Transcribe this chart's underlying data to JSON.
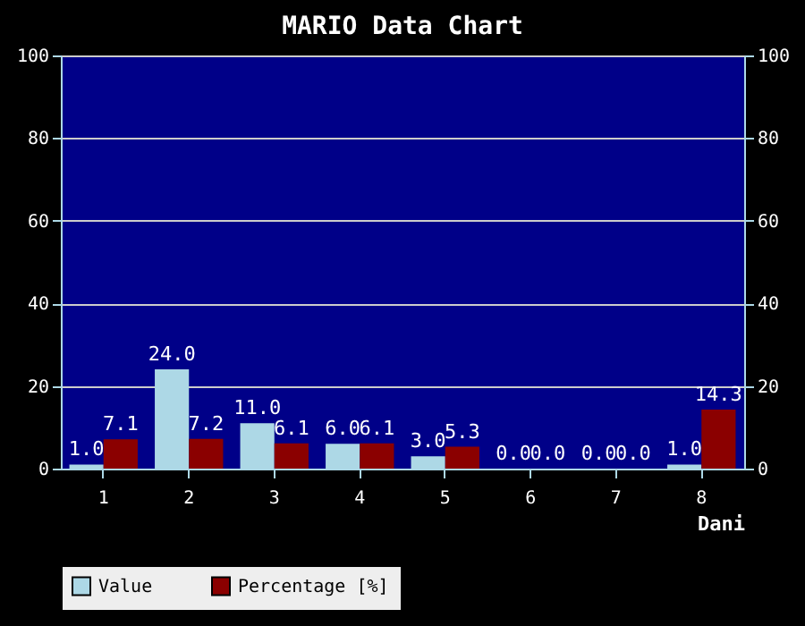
{
  "chart_data": {
    "type": "bar",
    "title": "MARIO Data Chart",
    "xlabel": "Dani",
    "categories": [
      "1",
      "2",
      "3",
      "4",
      "5",
      "6",
      "7",
      "8"
    ],
    "series": [
      {
        "name": "Value",
        "color": "#add8e6",
        "values": [
          1.0,
          24.0,
          11.0,
          6.0,
          3.0,
          0.0,
          0.0,
          1.0
        ],
        "value_labels": [
          "1.0",
          "24.0",
          "11.0",
          "6.0",
          "3.0",
          "0.0",
          "0.0",
          "1.0"
        ]
      },
      {
        "name": "Percentage [%]",
        "color": "#8b0000",
        "values": [
          7.1,
          7.2,
          6.1,
          6.1,
          5.3,
          0.0,
          0.0,
          14.3
        ],
        "value_labels": [
          "7.1",
          "7.2",
          "6.1",
          "6.1",
          "5.3",
          "0.0",
          "0.0",
          "14.3"
        ]
      }
    ],
    "ylim": [
      0,
      100
    ],
    "yticks": [
      0,
      20,
      40,
      60,
      80,
      100
    ],
    "y2lim": [
      0,
      100
    ],
    "y2ticks": [
      0,
      20,
      40,
      60,
      80,
      100
    ],
    "grid": "y",
    "legend": "bottom"
  }
}
